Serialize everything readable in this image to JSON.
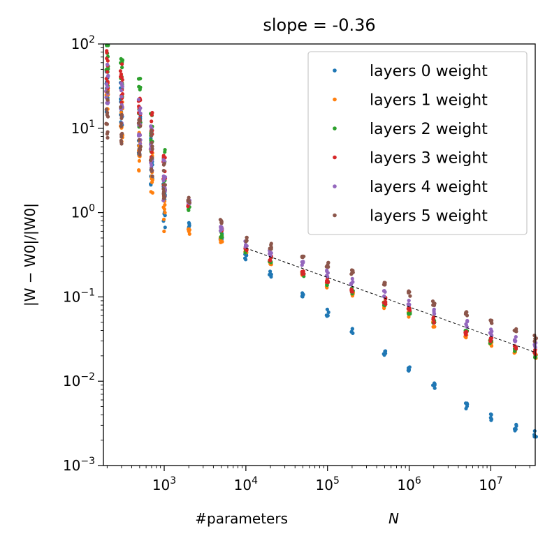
{
  "chart_data": {
    "type": "scatter",
    "title": "slope = -0.36",
    "xlabel": "#parameters",
    "xlabel_symbol": "N",
    "ylabel": "|W − W0|/|W0|",
    "xscale": "log",
    "yscale": "log",
    "xlim": [
      180,
      35000000
    ],
    "ylim": [
      0.001,
      100
    ],
    "x_ticks": [
      {
        "exp": "3",
        "value": 1000
      },
      {
        "exp": "4",
        "value": 10000
      },
      {
        "exp": "5",
        "value": 100000
      },
      {
        "exp": "6",
        "value": 1000000
      },
      {
        "exp": "7",
        "value": 10000000
      }
    ],
    "y_ticks": [
      {
        "exp": "−3",
        "value": 0.001
      },
      {
        "exp": "−2",
        "value": 0.01
      },
      {
        "exp": "−1",
        "value": 0.1
      },
      {
        "exp": "0",
        "value": 1
      },
      {
        "exp": "1",
        "value": 10
      },
      {
        "exp": "2",
        "value": 100
      }
    ],
    "tick_base": "10",
    "legend_position": "top-right",
    "grid": false,
    "series": [
      {
        "name": "layers 0 weight",
        "color": "#1f77b4",
        "x": [
          200,
          300,
          500,
          700,
          1000,
          2000,
          5000,
          10000,
          20000,
          50000,
          100000,
          200000,
          500000,
          1000000,
          2000000,
          5000000,
          10000000,
          20000000,
          35000000
        ],
        "y": [
          25,
          18,
          9,
          4,
          1.3,
          0.7,
          0.52,
          0.3,
          0.19,
          0.11,
          0.065,
          0.04,
          0.022,
          0.014,
          0.009,
          0.005,
          0.0037,
          0.0028,
          0.0024
        ]
      },
      {
        "name": "layers 1 weight",
        "color": "#ff7f0e",
        "x": [
          200,
          300,
          500,
          700,
          1000,
          2000,
          5000,
          10000,
          20000,
          50000,
          100000,
          200000,
          500000,
          1000000,
          2000000,
          5000000,
          10000000,
          20000000,
          35000000
        ],
        "y": [
          20,
          12,
          6,
          3,
          1.1,
          0.6,
          0.47,
          0.34,
          0.26,
          0.18,
          0.14,
          0.11,
          0.08,
          0.062,
          0.048,
          0.035,
          0.028,
          0.023,
          0.02
        ]
      },
      {
        "name": "layers 2 weight",
        "color": "#2ca02c",
        "x": [
          200,
          300,
          500,
          700,
          1000,
          2000,
          5000,
          10000,
          20000,
          50000,
          100000,
          200000,
          500000,
          1000000,
          2000000,
          5000000,
          10000000,
          20000000,
          35000000
        ],
        "y": [
          60,
          40,
          20,
          10,
          3,
          1.1,
          0.55,
          0.36,
          0.27,
          0.19,
          0.15,
          0.115,
          0.085,
          0.066,
          0.051,
          0.037,
          0.03,
          0.025,
          0.021
        ]
      },
      {
        "name": "layers 3 weight",
        "color": "#d62728",
        "x": [
          200,
          300,
          500,
          700,
          1000,
          2000,
          5000,
          10000,
          20000,
          50000,
          100000,
          200000,
          500000,
          1000000,
          2000000,
          5000000,
          10000000,
          20000000,
          35000000
        ],
        "y": [
          50,
          30,
          15,
          8,
          2.5,
          1.2,
          0.6,
          0.38,
          0.29,
          0.2,
          0.16,
          0.12,
          0.09,
          0.069,
          0.053,
          0.039,
          0.031,
          0.026,
          0.022
        ]
      },
      {
        "name": "layers 4 weight",
        "color": "#9467bd",
        "x": [
          200,
          300,
          500,
          700,
          1000,
          2000,
          5000,
          10000,
          20000,
          50000,
          100000,
          200000,
          500000,
          1000000,
          2000000,
          5000000,
          10000000,
          20000000,
          35000000
        ],
        "y": [
          30,
          20,
          12,
          6,
          2.2,
          1.3,
          0.65,
          0.42,
          0.33,
          0.24,
          0.19,
          0.15,
          0.11,
          0.085,
          0.066,
          0.048,
          0.038,
          0.031,
          0.026
        ]
      },
      {
        "name": "layers 5 weight",
        "color": "#8c564b",
        "x": [
          200,
          300,
          500,
          700,
          1000,
          2000,
          5000,
          10000,
          20000,
          50000,
          100000,
          200000,
          500000,
          1000000,
          2000000,
          5000000,
          10000000,
          20000000,
          35000000
        ],
        "y": [
          15,
          10,
          8,
          5,
          2,
          1.4,
          0.75,
          0.5,
          0.4,
          0.3,
          0.24,
          0.19,
          0.14,
          0.11,
          0.085,
          0.063,
          0.05,
          0.041,
          0.032
        ]
      }
    ],
    "fit_line": {
      "style": "dashed",
      "color": "#000000",
      "x": [
        10000,
        35000000
      ],
      "y": [
        0.38,
        0.022
      ]
    }
  }
}
